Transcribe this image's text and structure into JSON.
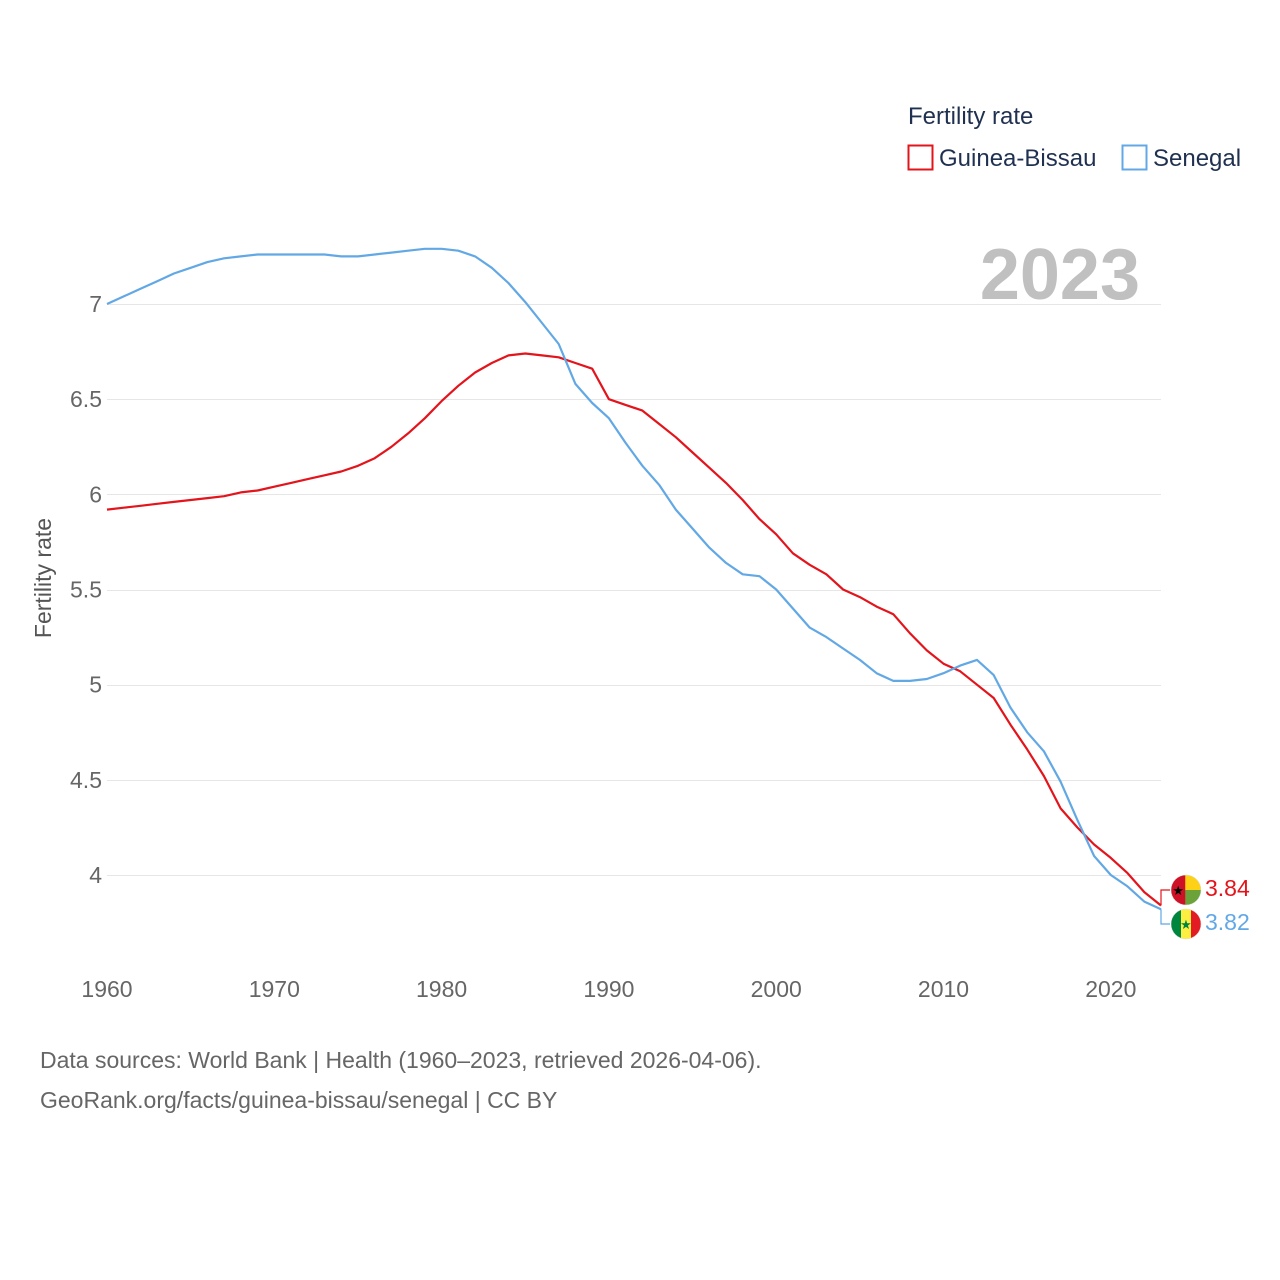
{
  "chart_data": {
    "type": "line",
    "title": "",
    "xlabel": "",
    "ylabel": "Fertility rate",
    "xlim": [
      1960,
      2023
    ],
    "ylim": [
      3.6,
      7.3
    ],
    "yticks": [
      4,
      4.5,
      5,
      5.5,
      6,
      6.5,
      7
    ],
    "ytick_labels": [
      "4",
      "4.5",
      "5",
      "5.5",
      "6",
      "6.5",
      "7"
    ],
    "xticks": [
      1960,
      1970,
      1980,
      1990,
      2000,
      2010,
      2020
    ],
    "xtick_labels": [
      "1960",
      "1970",
      "1980",
      "1990",
      "2000",
      "2010",
      "2020"
    ],
    "grid": true,
    "legend_title": "Fertility rate",
    "legend_position": "top-right",
    "year_label": "2023",
    "x": [
      1960,
      1961,
      1962,
      1963,
      1964,
      1965,
      1966,
      1967,
      1968,
      1969,
      1970,
      1971,
      1972,
      1973,
      1974,
      1975,
      1976,
      1977,
      1978,
      1979,
      1980,
      1981,
      1982,
      1983,
      1984,
      1985,
      1986,
      1987,
      1988,
      1989,
      1990,
      1991,
      1992,
      1993,
      1994,
      1995,
      1996,
      1997,
      1998,
      1999,
      2000,
      2001,
      2002,
      2003,
      2004,
      2005,
      2006,
      2007,
      2008,
      2009,
      2010,
      2011,
      2012,
      2013,
      2014,
      2015,
      2016,
      2017,
      2018,
      2019,
      2020,
      2021,
      2022,
      2023
    ],
    "series": [
      {
        "name": "Guinea-Bissau",
        "color": "#e3141b",
        "end_label": "3.84",
        "flag": "guinea-bissau-flag-icon",
        "values": [
          5.92,
          5.93,
          5.94,
          5.95,
          5.96,
          5.97,
          5.98,
          5.99,
          6.01,
          6.02,
          6.04,
          6.06,
          6.08,
          6.1,
          6.12,
          6.15,
          6.19,
          6.25,
          6.32,
          6.4,
          6.49,
          6.57,
          6.64,
          6.69,
          6.73,
          6.74,
          6.73,
          6.72,
          6.69,
          6.66,
          6.5,
          6.47,
          6.44,
          6.37,
          6.3,
          6.22,
          6.14,
          6.06,
          5.97,
          5.87,
          5.79,
          5.69,
          5.63,
          5.58,
          5.5,
          5.46,
          5.41,
          5.37,
          5.27,
          5.18,
          5.11,
          5.07,
          5.0,
          4.93,
          4.79,
          4.66,
          4.52,
          4.35,
          4.25,
          4.16,
          4.09,
          4.01,
          3.91,
          3.84
        ]
      },
      {
        "name": "Senegal",
        "color": "#62a8e5",
        "end_label": "3.82",
        "flag": "senegal-flag-icon",
        "values": [
          7.0,
          7.04,
          7.08,
          7.12,
          7.16,
          7.19,
          7.22,
          7.24,
          7.25,
          7.26,
          7.26,
          7.26,
          7.26,
          7.26,
          7.25,
          7.25,
          7.26,
          7.27,
          7.28,
          7.29,
          7.29,
          7.28,
          7.25,
          7.19,
          7.11,
          7.01,
          6.9,
          6.79,
          6.58,
          6.48,
          6.4,
          6.27,
          6.15,
          6.05,
          5.92,
          5.82,
          5.72,
          5.64,
          5.58,
          5.57,
          5.5,
          5.4,
          5.3,
          5.25,
          5.19,
          5.13,
          5.06,
          5.02,
          5.02,
          5.03,
          5.06,
          5.1,
          5.13,
          5.05,
          4.88,
          4.75,
          4.65,
          4.49,
          4.29,
          4.1,
          4.0,
          3.94,
          3.86,
          3.82
        ]
      }
    ]
  },
  "footer": {
    "line1": "Data sources: World Bank | Health (1960–2023, retrieved 2026-04-06).",
    "line2": "GeoRank.org/facts/guinea-bissau/senegal | CC BY"
  }
}
